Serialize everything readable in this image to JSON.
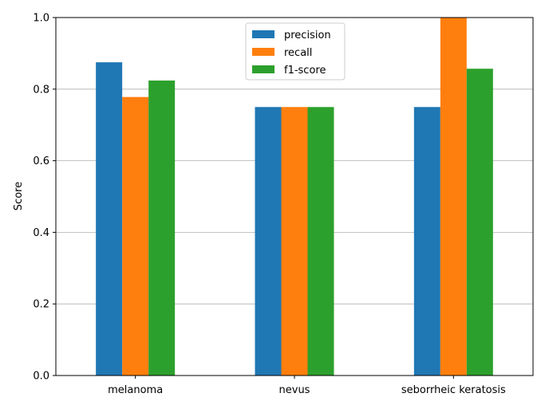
{
  "chart_data": {
    "type": "bar",
    "categories": [
      "melanoma",
      "nevus",
      "seborrheic keratosis"
    ],
    "series": [
      {
        "name": "precision",
        "color": "#1f77b4",
        "values": [
          0.875,
          0.75,
          0.75
        ]
      },
      {
        "name": "recall",
        "color": "#ff7f0e",
        "values": [
          0.778,
          0.75,
          1.0
        ]
      },
      {
        "name": "f1-score",
        "color": "#2ca02c",
        "values": [
          0.824,
          0.75,
          0.857
        ]
      }
    ],
    "title": "",
    "xlabel": "",
    "ylabel": "Score",
    "ylim": [
      0,
      1.0
    ],
    "yticks": [
      "0.0",
      "0.2",
      "0.4",
      "0.6",
      "0.8",
      "1.0"
    ],
    "grid": "y",
    "legend_position": "top-center"
  }
}
